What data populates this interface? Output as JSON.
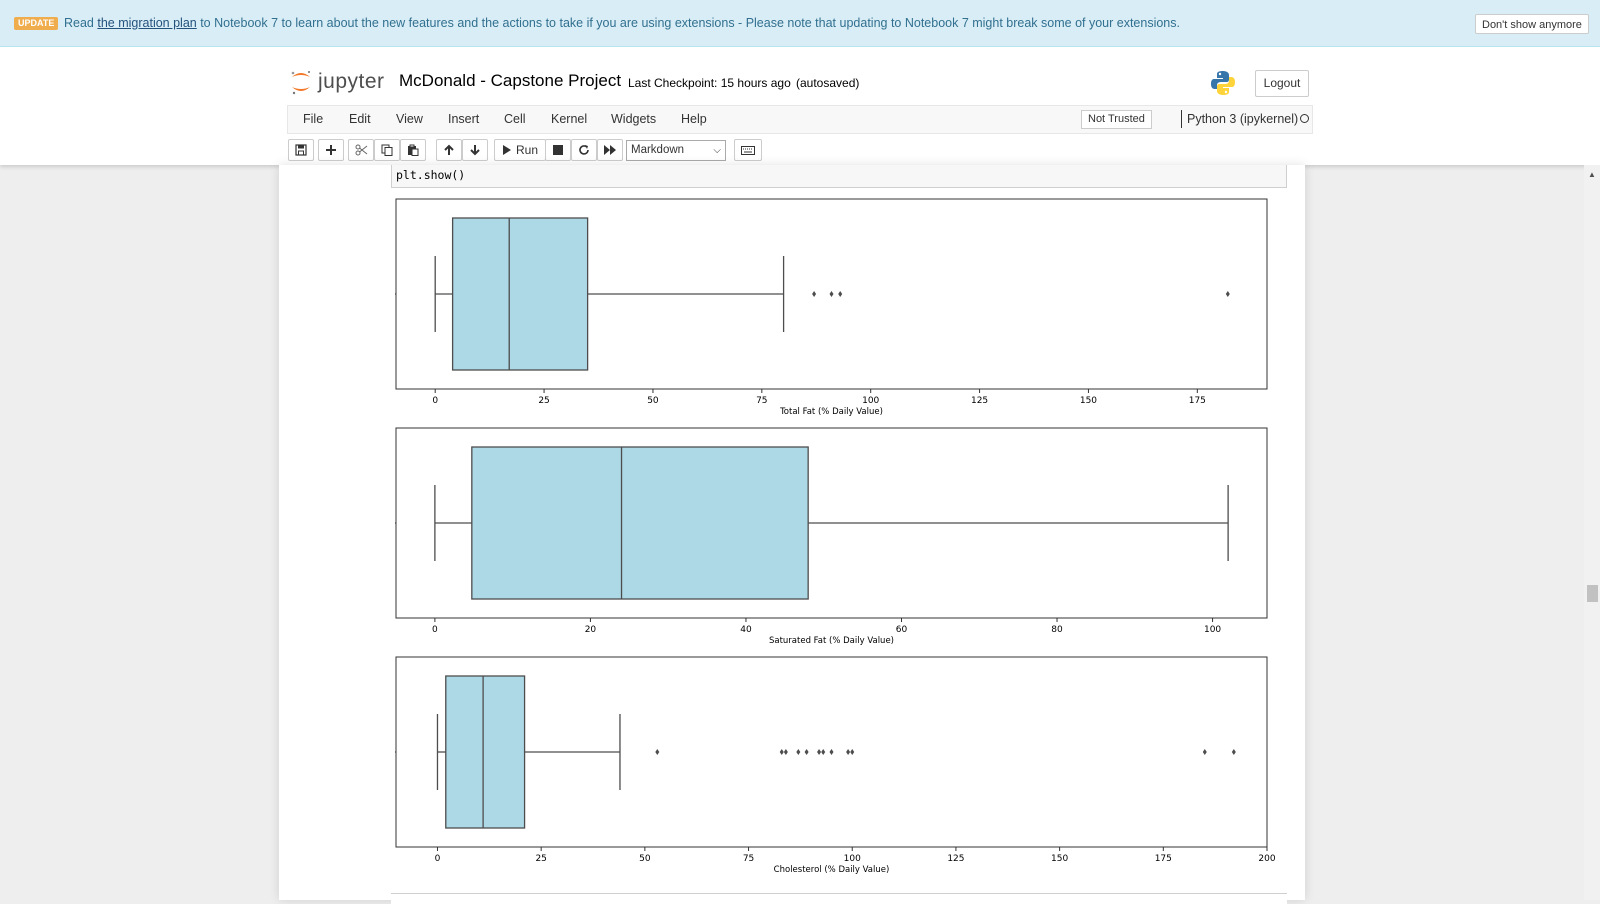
{
  "banner": {
    "badge": "UPDATE",
    "text_before": "Read ",
    "link": "the migration plan",
    "text_after": " to Notebook 7 to learn about the new features and the actions to take if you are using extensions - Please note that updating to Notebook 7 might break some of your extensions.",
    "dismiss_label": "Don't show anymore"
  },
  "header": {
    "logo_text": "jupyter",
    "notebook_title": "McDonald - Capstone Project",
    "checkpoint": "Last Checkpoint: 15 hours ago",
    "autosaved": "(autosaved)",
    "logout_label": "Logout"
  },
  "menu": {
    "items": [
      "File",
      "Edit",
      "View",
      "Insert",
      "Cell",
      "Kernel",
      "Widgets",
      "Help"
    ],
    "trust_label": "Not Trusted",
    "kernel_name": "Python 3 (ipykernel)"
  },
  "toolbar": {
    "run_label": "Run",
    "cell_type": "Markdown",
    "icons": [
      "save-icon",
      "plus-icon",
      "scissors-icon",
      "copy-icon",
      "paste-icon",
      "arrow-up-icon",
      "arrow-down-icon",
      "play-icon",
      "stop-icon",
      "restart-icon",
      "fast-forward-icon",
      "keyboard-icon"
    ]
  },
  "cell": {
    "code": "plt.show()"
  },
  "colors": {
    "box_fill": "#add8e6",
    "box_edge": "#4d4d4d",
    "banner_bg": "#d9edf7",
    "badge_bg": "#f0ad4e"
  },
  "chart_data": [
    {
      "type": "box",
      "xlabel": "Total Fat (% Daily Value)",
      "xlim": [
        -9,
        191
      ],
      "xticks": [
        0,
        25,
        50,
        75,
        100,
        125,
        150,
        175
      ],
      "whisker_low": 0,
      "q1": 4,
      "median": 17,
      "q3": 35,
      "whisker_high": 80,
      "outliers": [
        87,
        91,
        93,
        182
      ]
    },
    {
      "type": "box",
      "xlabel": "Saturated Fat (% Daily Value)",
      "xlim": [
        -5,
        107
      ],
      "xticks": [
        0,
        20,
        40,
        60,
        80,
        100
      ],
      "whisker_low": 0,
      "q1": 4.75,
      "median": 24,
      "q3": 48,
      "whisker_high": 102,
      "outliers": []
    },
    {
      "type": "box",
      "xlabel": "Cholesterol (% Daily Value)",
      "xlim": [
        -10,
        200
      ],
      "xticks": [
        0,
        25,
        50,
        75,
        100,
        125,
        150,
        175,
        200
      ],
      "whisker_low": 0,
      "q1": 2,
      "median": 11,
      "q3": 21,
      "whisker_high": 44,
      "outliers": [
        53,
        83,
        84,
        87,
        89,
        92,
        93,
        95,
        99,
        100,
        185,
        192
      ]
    }
  ]
}
